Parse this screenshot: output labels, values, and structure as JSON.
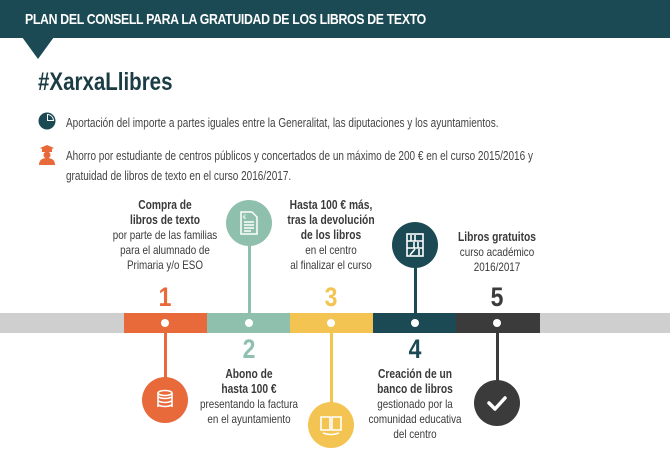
{
  "header": {
    "title": "PLAN DEL CONSELL PARA LA GRATUIDAD DE LOS LIBROS DE TEXTO"
  },
  "hashtag": "#XarxaLlibres",
  "bullets": [
    {
      "icon": "pie-chart-icon",
      "lines": [
        "Aportación del importe a partes iguales entre la Generalitat, las diputaciones y los ayuntamientos."
      ]
    },
    {
      "icon": "graduate-icon",
      "lines": [
        "Ahorro por estudiante de centros públicos y concertados de un máximo de 200 € en el curso 2015/2016 y",
        "gratuidad de libros de texto en el curso 2016/2017."
      ]
    }
  ],
  "colors": {
    "orange": "#e8693a",
    "green": "#8fbfad",
    "yellow": "#f4c452",
    "teal": "#1b4a54",
    "dark": "#3b3b3b",
    "track": "#cfcfcf"
  },
  "steps": [
    {
      "number": "1",
      "bold": [
        "Compra de",
        "libros de texto"
      ],
      "normal": [
        "por parte de las familias",
        "para  el alumnado de",
        "Primaria y/o ESO"
      ],
      "icon": "coins-icon"
    },
    {
      "number": "2",
      "bold": [
        "Abono de",
        "hasta 100 €"
      ],
      "normal": [
        "presentando la factura",
        "en el ayuntamiento"
      ],
      "icon": "invoice-icon"
    },
    {
      "number": "3",
      "bold": [
        "Hasta 100 € más,",
        "tras la devolución",
        "de los libros"
      ],
      "normal": [
        "en el centro",
        "al finalizar el curso"
      ],
      "icon": "book-icon"
    },
    {
      "number": "4",
      "bold": [
        "Creación de un",
        "banco de libros"
      ],
      "normal": [
        "gestionado por la",
        "comunidad educativa",
        "del centro"
      ],
      "icon": "bookshelf-icon"
    },
    {
      "number": "5",
      "bold": [
        "Libros gratuitos"
      ],
      "normal": [
        "curso académico",
        "2016/2017"
      ],
      "icon": "check-icon"
    }
  ]
}
